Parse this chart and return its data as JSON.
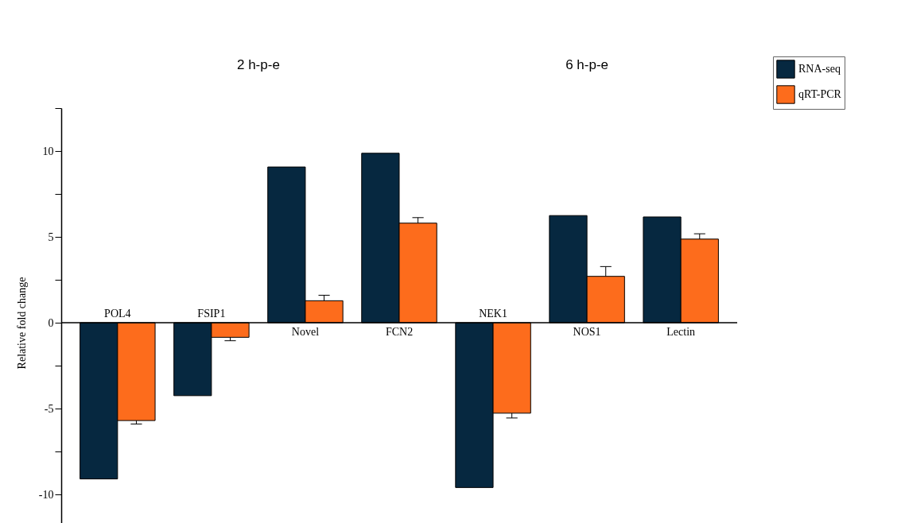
{
  "chart_data": {
    "type": "bar",
    "ylabel": "Relative fold change",
    "categories": [
      "POL4",
      "FSIP1",
      "Novel",
      "FCN2",
      "NEK1",
      "NOS1",
      "Lectin"
    ],
    "series": [
      {
        "name": "RNA-seq",
        "color": "#062840",
        "values": [
          -9.1,
          -4.25,
          9.07,
          9.87,
          -9.6,
          6.24,
          6.16
        ]
      },
      {
        "name": "qRT-PCR",
        "color": "#fd6c1c",
        "values": [
          -5.7,
          -0.85,
          1.28,
          5.8,
          -5.27,
          2.7,
          4.87
        ],
        "errors": [
          [
            -5.9,
            -5.7
          ],
          [
            -1.05,
            -0.85
          ],
          [
            1.28,
            1.6
          ],
          [
            5.8,
            6.12
          ],
          [
            -5.55,
            -5.27
          ],
          [
            2.7,
            3.27
          ],
          [
            4.87,
            5.18
          ]
        ]
      }
    ],
    "annotations": [
      "2 h-p-e",
      "6 h-p-e"
    ],
    "ylim": [
      -12.5,
      12.5
    ],
    "yticks": [
      {
        "value": -12.5,
        "label": null
      },
      -10,
      {
        "value": -7.5,
        "label": null
      },
      -5,
      {
        "value": -2.5,
        "label": null
      },
      0,
      {
        "value": 2.5,
        "label": null
      },
      5,
      {
        "value": 7.5,
        "label": null
      },
      10,
      {
        "value": 12.5,
        "label": null
      }
    ],
    "legend": "top right",
    "grid": false
  }
}
